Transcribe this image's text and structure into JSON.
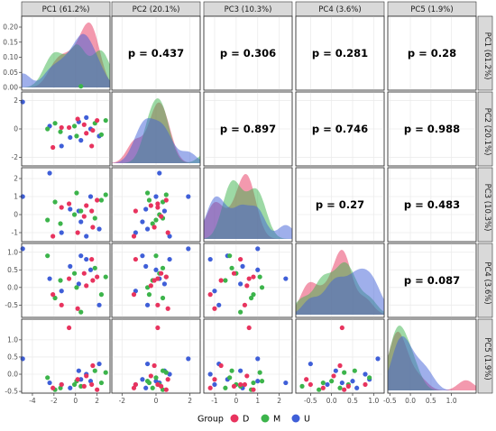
{
  "chart_data": {
    "type": "scatter",
    "title": "",
    "variables": [
      "PC1 (61.2%)",
      "PC2 (20.1%)",
      "PC3 (10.3%)",
      "PC4 (3.6%)",
      "PC5 (1.9%)"
    ],
    "ranges": [
      [
        -5,
        3.2
      ],
      [
        -2.6,
        2.6
      ],
      [
        -1.5,
        2.6
      ],
      [
        -0.85,
        1.25
      ],
      [
        -0.55,
        1.6
      ]
    ],
    "ticks": [
      [
        "-4",
        "-2",
        "0",
        "2"
      ],
      [
        "-2",
        "0",
        "2"
      ],
      [
        "-1",
        "0",
        "1",
        "2"
      ],
      [
        "-0.5",
        "0.0",
        "0.5",
        "1.0"
      ],
      [
        "-0.5",
        "0.0",
        "0.5",
        "1.0"
      ]
    ],
    "tick_values": [
      [
        -4,
        -2,
        0,
        2
      ],
      [
        -2,
        0,
        2
      ],
      [
        -1,
        0,
        1,
        2
      ],
      [
        -0.5,
        0.0,
        0.5,
        1.0
      ],
      [
        -0.5,
        0.0,
        0.5,
        1.0
      ]
    ],
    "diag_ylabels": [
      "0.00",
      "0.05",
      "0.10",
      "0.15",
      "0.20"
    ],
    "diag_yvalues": [
      0,
      0.05,
      0.1,
      0.15,
      0.2
    ],
    "correlations": [
      {
        "row": 0,
        "col": 1,
        "label": "p = 0.437"
      },
      {
        "row": 0,
        "col": 2,
        "label": "p = 0.306"
      },
      {
        "row": 0,
        "col": 3,
        "label": "p = 0.281"
      },
      {
        "row": 0,
        "col": 4,
        "label": "p = 0.28"
      },
      {
        "row": 1,
        "col": 2,
        "label": "p = 0.897"
      },
      {
        "row": 1,
        "col": 3,
        "label": "p = 0.746"
      },
      {
        "row": 1,
        "col": 4,
        "label": "p = 0.988"
      },
      {
        "row": 2,
        "col": 3,
        "label": "p = 0.27"
      },
      {
        "row": 2,
        "col": 4,
        "label": "p = 0.483"
      },
      {
        "row": 3,
        "col": 4,
        "label": "p = 0.087"
      }
    ],
    "groups": [
      {
        "name": "D",
        "color": "#e8335e"
      },
      {
        "name": "M",
        "color": "#3cb44b"
      },
      {
        "name": "U",
        "color": "#3f5fd8"
      }
    ],
    "legend": {
      "title": "Group",
      "position": "bottom"
    },
    "points": [
      {
        "g": "U",
        "v": [
          -4.9,
          1.9,
          1.0,
          1.1,
          0.45
        ]
      },
      {
        "g": "U",
        "v": [
          -2.4,
          0.2,
          2.3,
          0.25,
          -0.25
        ]
      },
      {
        "g": "U",
        "v": [
          -0.5,
          -0.6,
          0.3,
          0.6,
          -0.4
        ]
      },
      {
        "g": "U",
        "v": [
          1.0,
          0.8,
          -1.2,
          0.8,
          0.0
        ]
      },
      {
        "g": "U",
        "v": [
          1.4,
          0.0,
          1.0,
          0.5,
          -0.2
        ]
      },
      {
        "g": "U",
        "v": [
          2.2,
          -0.5,
          -0.8,
          -0.5,
          0.3
        ]
      },
      {
        "g": "U",
        "v": [
          0.3,
          0.5,
          0.2,
          0.1,
          0.1
        ]
      },
      {
        "g": "U",
        "v": [
          -1.3,
          -1.2,
          -1.0,
          -0.1,
          -0.3
        ]
      },
      {
        "g": "U",
        "v": [
          0.5,
          -0.8,
          -0.4,
          0.9,
          -0.15
        ]
      },
      {
        "g": "M",
        "v": [
          0.5,
          3.0,
          0.2,
          -0.7,
          -0.35
        ]
      },
      {
        "g": "M",
        "v": [
          -2.6,
          0.0,
          -0.3,
          0.9,
          -0.1
        ]
      },
      {
        "g": "M",
        "v": [
          -1.9,
          0.4,
          0.7,
          -0.3,
          -0.45
        ]
      },
      {
        "g": "M",
        "v": [
          0.1,
          -0.5,
          1.2,
          0.0,
          -0.2
        ]
      },
      {
        "g": "M",
        "v": [
          2.8,
          0.6,
          1.1,
          0.3,
          0.05
        ]
      },
      {
        "g": "M",
        "v": [
          2.4,
          -0.4,
          0.8,
          -0.2,
          -0.25
        ]
      },
      {
        "g": "M",
        "v": [
          -0.1,
          0.2,
          0.0,
          0.4,
          -0.3
        ]
      },
      {
        "g": "M",
        "v": [
          1.8,
          0.4,
          -0.2,
          0.55,
          0.1
        ]
      },
      {
        "g": "M",
        "v": [
          -1.4,
          -0.2,
          -0.5,
          0.2,
          -0.4
        ]
      },
      {
        "g": "D",
        "v": [
          -2.1,
          -1.3,
          -1.2,
          -0.2,
          -0.4
        ]
      },
      {
        "g": "D",
        "v": [
          -1.3,
          0.1,
          0.4,
          -0.5,
          -0.3
        ]
      },
      {
        "g": "D",
        "v": [
          -0.6,
          0.1,
          0.6,
          0.25,
          1.35
        ]
      },
      {
        "g": "D",
        "v": [
          0.8,
          0.3,
          -0.1,
          0.4,
          -0.35
        ]
      },
      {
        "g": "D",
        "v": [
          1.5,
          -1.2,
          0.2,
          0.8,
          -0.3
        ]
      },
      {
        "g": "D",
        "v": [
          1.6,
          -0.1,
          -0.7,
          0.2,
          0.25
        ]
      },
      {
        "g": "D",
        "v": [
          2.0,
          0.6,
          0.8,
          0.3,
          -0.45
        ]
      },
      {
        "g": "D",
        "v": [
          0.2,
          0.7,
          -1.0,
          -0.6,
          -0.15
        ]
      },
      {
        "g": "D",
        "v": [
          1.0,
          -0.3,
          0.5,
          0.05,
          -0.05
        ]
      }
    ]
  }
}
